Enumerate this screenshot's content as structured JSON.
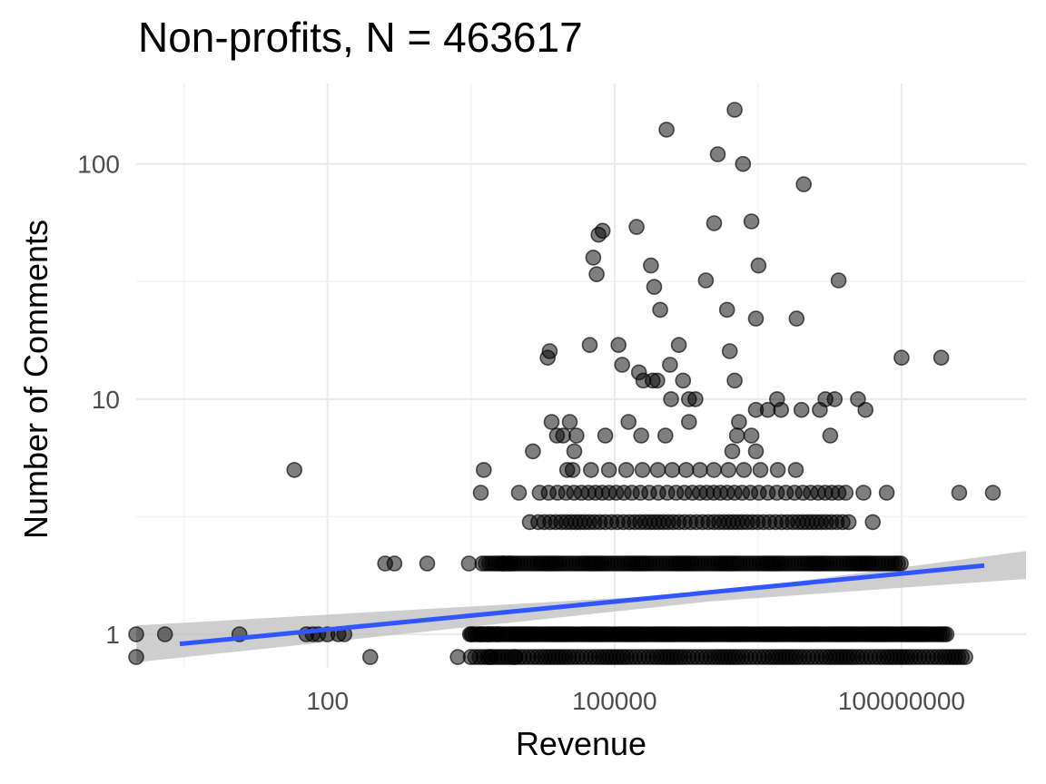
{
  "chart_data": {
    "type": "scatter",
    "title": "Non-profits, N = 463617",
    "xlabel": "Revenue",
    "ylabel": "Number of Comments",
    "x_scale": "log10",
    "y_scale": "log10",
    "xlim": [
      1,
      2000000000
    ],
    "ylim": [
      0.72,
      220
    ],
    "x_ticks": [
      {
        "value": 100,
        "label": "100"
      },
      {
        "value": 100000,
        "label": "100000"
      },
      {
        "value": 100000000,
        "label": "100000000"
      }
    ],
    "y_ticks": [
      {
        "value": 1,
        "label": "1"
      },
      {
        "value": 10,
        "label": "10"
      },
      {
        "value": 100,
        "label": "100"
      }
    ],
    "grid": true,
    "point_color": "#000000",
    "point_opacity": 0.5,
    "point_bands": [
      {
        "y": 0.8,
        "x_from": 3000,
        "x_to": 500000000,
        "count": 130
      },
      {
        "y": 1,
        "x_from": 3000,
        "x_to": 300000000,
        "count": 200
      },
      {
        "y": 2,
        "x_from": 4000,
        "x_to": 100000000,
        "count": 140
      },
      {
        "y": 3,
        "x_from": 15000,
        "x_to": 30000000,
        "count": 60
      },
      {
        "y": 4,
        "x_from": 15000,
        "x_to": 30000000,
        "count": 40
      },
      {
        "y": 5,
        "x_from": 30000,
        "x_to": 10000000,
        "count": 15
      }
    ],
    "points": [
      [
        1,
        1
      ],
      [
        1,
        0.8
      ],
      [
        2,
        1
      ],
      [
        12,
        1
      ],
      [
        45,
        5
      ],
      [
        4300,
        5
      ],
      [
        70,
        1
      ],
      [
        100,
        1
      ],
      [
        130,
        1
      ],
      [
        60,
        1
      ],
      [
        80,
        1
      ],
      [
        150,
        1
      ],
      [
        280,
        0.8
      ],
      [
        2300,
        0.8
      ],
      [
        5000,
        0.8
      ],
      [
        9000,
        0.8
      ],
      [
        3200,
        1
      ],
      [
        4000,
        1
      ],
      [
        4800,
        1
      ],
      [
        6000,
        1
      ],
      [
        400,
        2
      ],
      [
        1100,
        2
      ],
      [
        3000,
        2
      ],
      [
        8000,
        2
      ],
      [
        500,
        2
      ],
      [
        6800,
        2
      ],
      [
        10000,
        4
      ],
      [
        4000,
        4
      ],
      [
        70000000,
        4
      ],
      [
        13000,
        3
      ],
      [
        900000000,
        4
      ],
      [
        50000000,
        3
      ],
      [
        40000000,
        4
      ],
      [
        22000,
        8
      ],
      [
        34000,
        8
      ],
      [
        140000,
        8
      ],
      [
        600000,
        8
      ],
      [
        2000000,
        8
      ],
      [
        29000,
        7
      ],
      [
        40000,
        7
      ],
      [
        80000,
        7
      ],
      [
        190000,
        7
      ],
      [
        340000,
        7
      ],
      [
        25000,
        7
      ],
      [
        18000000,
        7
      ],
      [
        1900000,
        7
      ],
      [
        14000000,
        9
      ],
      [
        21000,
        16
      ],
      [
        55000,
        17
      ],
      [
        120000,
        14
      ],
      [
        110000,
        17
      ],
      [
        180000,
        13
      ],
      [
        200000,
        12
      ],
      [
        250000,
        12
      ],
      [
        280000,
        12
      ],
      [
        1600000,
        16
      ],
      [
        1800000,
        12
      ],
      [
        600000,
        10
      ],
      [
        700000,
        10
      ],
      [
        100000000,
        15
      ],
      [
        20000000,
        10
      ],
      [
        16000000,
        10
      ],
      [
        35000000,
        10
      ],
      [
        42000000,
        9
      ],
      [
        5500000,
        9
      ],
      [
        3000000,
        9
      ],
      [
        3000000,
        22
      ],
      [
        260000,
        30
      ],
      [
        240000,
        37
      ],
      [
        1100000,
        56
      ],
      [
        170000,
        54
      ],
      [
        65000,
        34
      ],
      [
        60000,
        40
      ],
      [
        68000,
        50
      ],
      [
        75000,
        52
      ],
      [
        900000,
        32
      ],
      [
        1500000,
        24
      ],
      [
        5000000,
        10
      ],
      [
        300000,
        24
      ],
      [
        390000,
        10
      ],
      [
        380000,
        14
      ],
      [
        470000,
        17
      ],
      [
        520000,
        12
      ],
      [
        350000,
        140
      ],
      [
        1800000,
        170
      ],
      [
        1200000,
        110
      ],
      [
        2200000,
        100
      ],
      [
        2700000,
        57
      ],
      [
        3200000,
        37
      ],
      [
        9500000,
        82
      ],
      [
        22000000,
        32
      ],
      [
        260000000,
        15
      ],
      [
        400000000,
        4
      ],
      [
        20000,
        15
      ],
      [
        38000,
        6
      ],
      [
        32000,
        5
      ],
      [
        14000,
        6
      ],
      [
        1700000,
        6
      ],
      [
        3000000,
        6
      ],
      [
        2700000,
        7
      ],
      [
        4000000,
        9
      ],
      [
        8000000,
        22
      ],
      [
        9000000,
        9
      ]
    ],
    "trend": {
      "x": [
        1,
        2000000000
      ],
      "y": [
        0.91,
        1.96
      ]
    },
    "ribbon": {
      "x": [
        1,
        1000000,
        2000000000
      ],
      "lower": [
        0.76,
        1.38,
        1.72
      ],
      "upper": [
        1.09,
        1.5,
        2.26
      ]
    },
    "trend_color": "#3155ff",
    "ribbon_color": "#bdbdbd"
  }
}
